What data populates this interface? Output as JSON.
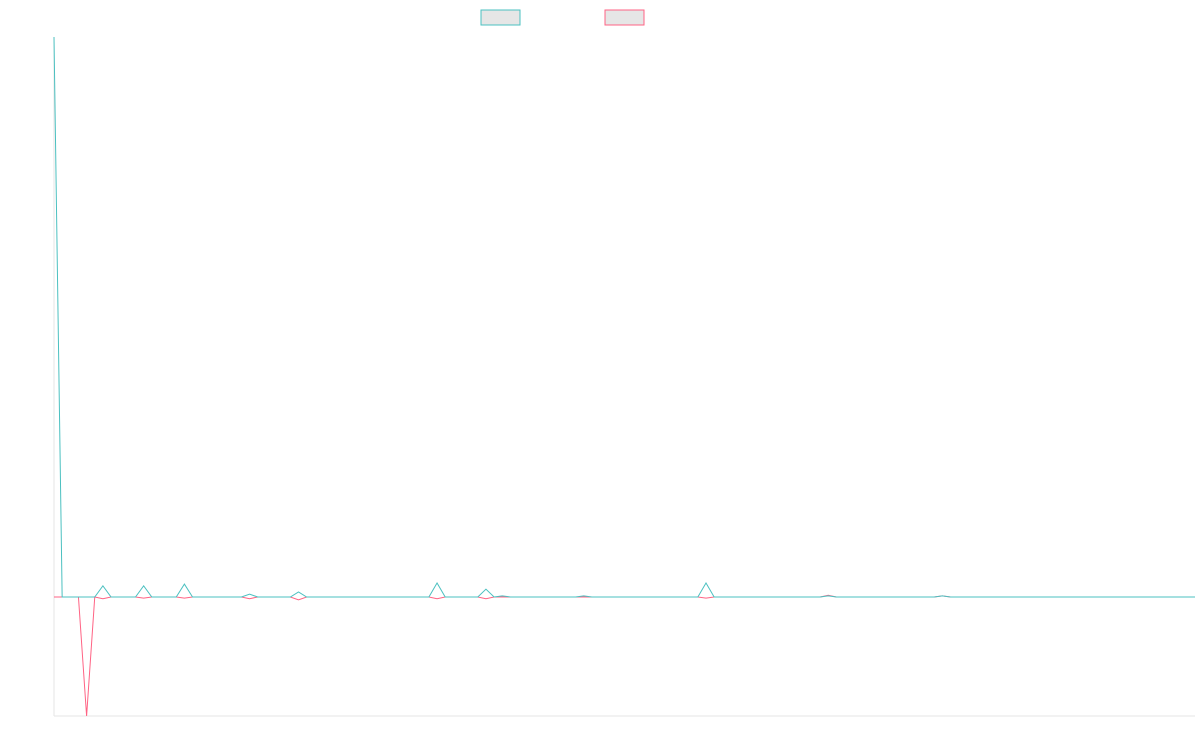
{
  "chart_data": {
    "type": "line",
    "ylim": [
      -21.25,
      100
    ],
    "grid": false,
    "legend": "top",
    "series": [
      {
        "color": "#ff6384",
        "values": [
          0,
          0,
          0,
          0,
          -21.25,
          0,
          -0.3,
          0,
          0,
          0,
          0,
          -0.2,
          0,
          0,
          0,
          0,
          -0.2,
          0,
          0,
          0,
          0,
          0,
          0,
          0,
          -0.3,
          0,
          0,
          0,
          0,
          0,
          -0.5,
          0,
          0,
          0,
          0,
          0,
          0,
          0,
          0,
          0,
          0,
          0,
          0,
          0,
          0,
          0,
          0,
          -0.3,
          0,
          0,
          0,
          0,
          0,
          -0.3,
          0,
          0,
          0,
          0,
          0,
          0,
          0,
          0,
          0,
          0,
          0,
          0,
          0,
          0,
          0,
          0,
          0,
          0,
          0,
          0,
          0,
          0,
          0,
          0,
          0,
          0,
          -0.2,
          0,
          0,
          0,
          0,
          0,
          0,
          0,
          0,
          0,
          0,
          0,
          0,
          0,
          0,
          0.3,
          0,
          0,
          0,
          0,
          0,
          0,
          0,
          0,
          0,
          0,
          0,
          0,
          0,
          0.2,
          0,
          0,
          0,
          0,
          0,
          0,
          0,
          0,
          0,
          0,
          0,
          0,
          0,
          0,
          0,
          0,
          0,
          0,
          0,
          0,
          0,
          0,
          0,
          0,
          0,
          0,
          0,
          0,
          0,
          0,
          0
        ]
      },
      {
        "color": "#4bc0c0",
        "values": [
          100,
          0,
          0,
          0,
          0,
          0,
          2,
          0,
          0,
          0,
          0,
          2,
          0,
          0,
          0,
          0,
          2.3,
          0,
          0,
          0,
          0,
          0,
          0,
          0,
          0.5,
          0,
          0,
          0,
          0,
          0,
          0.9,
          0,
          0,
          0,
          0,
          0,
          0,
          0,
          0,
          0,
          0,
          0,
          0,
          0,
          0,
          0,
          0,
          2.5,
          0,
          0,
          0,
          0,
          0,
          1.4,
          0,
          0.2,
          0,
          0,
          0,
          0,
          0,
          0,
          0,
          0,
          0,
          0.2,
          0,
          0,
          0,
          0,
          0,
          0,
          0,
          0,
          0,
          0,
          0,
          0,
          0,
          0,
          2.5,
          0,
          0,
          0,
          0,
          0,
          0,
          0,
          0,
          0,
          0,
          0,
          0,
          0,
          0,
          0.2,
          0,
          0,
          0,
          0,
          0,
          0,
          0,
          0,
          0,
          0,
          0,
          0,
          0,
          0.2,
          0,
          0,
          0,
          0,
          0,
          0,
          0,
          0,
          0,
          0,
          0,
          0,
          0,
          0,
          0,
          0,
          0,
          0,
          0,
          0,
          0,
          0,
          0,
          0,
          0,
          0,
          0,
          0,
          0,
          0,
          0
        ]
      }
    ]
  }
}
